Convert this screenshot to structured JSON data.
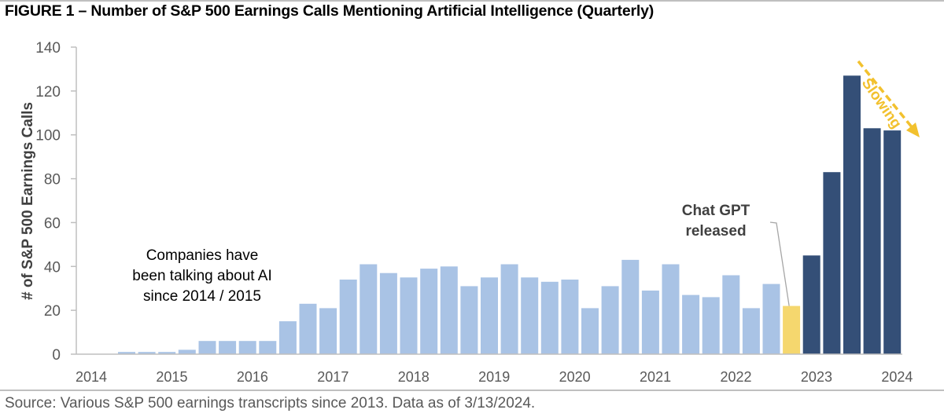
{
  "title": "FIGURE 1 – Number of S&P 500 Earnings Calls Mentioning Artificial Intelligence (Quarterly)",
  "source": "Source: Various S&P 500 earnings transcripts since 2013. Data as of 3/13/2024.",
  "annotations": {
    "left_line1": "Companies have",
    "left_line2": "been talking about AI",
    "left_line3": "since 2014 / 2015",
    "gpt_line1": "Chat GPT",
    "gpt_line2": "released",
    "slowing": "Slowing"
  },
  "colors": {
    "pre_chatgpt": "#a9c3e5",
    "chatgpt_quarter": "#f5d76e",
    "post_chatgpt": "#344f77",
    "arrow": "#f2c12e",
    "axis": "#bfbfbf",
    "tick_text": "#595959"
  },
  "chart_data": {
    "type": "bar",
    "title": "Number of S&P 500 Earnings Calls Mentioning Artificial Intelligence (Quarterly)",
    "xlabel": "",
    "ylabel": "# of S&P 500 Earnings Calls",
    "ylim": [
      0,
      140
    ],
    "yticks": [
      0,
      20,
      40,
      60,
      80,
      100,
      120,
      140
    ],
    "xtick_labels": [
      "2014",
      "2015",
      "2016",
      "2017",
      "2018",
      "2019",
      "2020",
      "2021",
      "2022",
      "2023",
      "2024"
    ],
    "grid": false,
    "legend": null,
    "categories": [
      "2014 Q1",
      "2014 Q2",
      "2014 Q3",
      "2014 Q4",
      "2015 Q1",
      "2015 Q2",
      "2015 Q3",
      "2015 Q4",
      "2016 Q1",
      "2016 Q2",
      "2016 Q3",
      "2016 Q4",
      "2017 Q1",
      "2017 Q2",
      "2017 Q3",
      "2017 Q4",
      "2018 Q1",
      "2018 Q2",
      "2018 Q3",
      "2018 Q4",
      "2019 Q1",
      "2019 Q2",
      "2019 Q3",
      "2019 Q4",
      "2020 Q1",
      "2020 Q2",
      "2020 Q3",
      "2020 Q4",
      "2021 Q1",
      "2021 Q2",
      "2021 Q3",
      "2021 Q4",
      "2022 Q1",
      "2022 Q2",
      "2022 Q3",
      "2022 Q4",
      "2023 Q1",
      "2023 Q2",
      "2023 Q3",
      "2023 Q4",
      "2024 Q1"
    ],
    "values": [
      0,
      0,
      1,
      1,
      1,
      2,
      6,
      6,
      6,
      6,
      15,
      23,
      21,
      34,
      41,
      37,
      35,
      39,
      40,
      31,
      35,
      41,
      35,
      33,
      34,
      21,
      31,
      43,
      29,
      41,
      27,
      26,
      36,
      21,
      32,
      22,
      45,
      83,
      127,
      103,
      102
    ],
    "highlight": {
      "chatgpt_index": 35,
      "post_chatgpt_start_index": 36
    },
    "annotations": [
      {
        "text": "Companies have been talking about AI since 2014 / 2015"
      },
      {
        "text": "Chat GPT released",
        "points_to": "2022 Q4"
      },
      {
        "text": "Slowing",
        "type": "dashed-arrow",
        "direction": "down-right"
      }
    ]
  }
}
